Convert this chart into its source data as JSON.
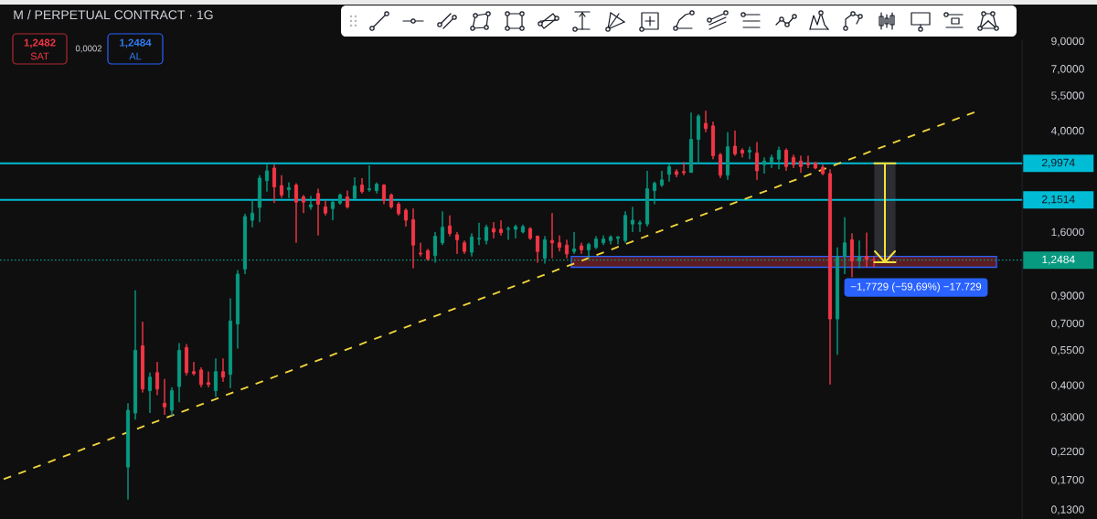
{
  "chart_data": {
    "type": "candlestick",
    "title": "M / PERPETUAL CONTRACT · 1G",
    "categories": [
      null,
      null,
      null,
      null,
      null,
      null,
      null,
      null,
      null,
      null,
      null,
      null,
      null,
      null,
      null,
      null,
      null,
      null,
      null,
      null,
      null,
      null,
      null,
      null,
      null,
      null,
      null,
      null,
      null,
      null,
      null,
      null,
      null,
      null,
      null,
      null,
      null,
      null,
      null,
      null,
      null,
      null,
      null,
      null,
      null,
      null,
      null,
      null,
      null,
      null,
      null,
      null,
      null,
      null,
      null,
      null,
      null,
      null,
      null,
      null,
      null,
      null,
      null,
      null,
      null,
      null,
      null,
      null,
      null,
      null,
      null,
      null,
      null,
      null,
      null,
      null,
      null,
      null,
      null,
      null,
      null,
      null,
      null,
      null,
      null,
      null,
      null,
      null,
      null,
      null,
      null,
      null,
      null,
      null,
      null,
      null,
      null,
      null,
      null,
      null,
      null,
      null,
      null,
      null,
      null,
      null,
      null,
      null,
      null,
      null,
      null,
      null,
      null,
      null,
      null,
      null,
      null,
      null,
      null,
      null,
      null,
      null,
      null,
      null,
      null,
      null,
      null,
      null,
      null,
      null,
      null,
      null,
      null,
      null,
      null,
      null,
      null,
      null,
      null,
      null
    ],
    "ohlc": [
      null,
      null,
      null,
      null,
      null,
      null,
      null,
      null,
      null,
      null,
      null,
      null,
      null,
      null,
      null,
      null,
      null,
      [
        0.192,
        0.342,
        0.143,
        0.321
      ],
      [
        0.313,
        0.95,
        0.295,
        0.552
      ],
      [
        0.575,
        0.715,
        0.377,
        0.389
      ],
      [
        0.383,
        0.451,
        0.313,
        0.433
      ],
      [
        0.451,
        0.497,
        0.368,
        0.389
      ],
      [
        0.342,
        0.426,
        0.308,
        0.331
      ],
      [
        0.321,
        0.395,
        0.305,
        0.383
      ],
      [
        0.398,
        0.589,
        0.345,
        0.552
      ],
      [
        0.566,
        0.584,
        0.44,
        0.451
      ],
      [
        0.455,
        0.497,
        0.44,
        0.447
      ],
      [
        0.462,
        0.473,
        0.395,
        0.405
      ],
      [
        0.412,
        0.455,
        0.395,
        0.405
      ],
      [
        0.383,
        0.513,
        0.362,
        0.455
      ],
      [
        0.455,
        0.513,
        0.415,
        0.433
      ],
      [
        0.444,
        0.883,
        0.392,
        0.72
      ],
      [
        0.7,
        1.14,
        0.561,
        1.1
      ],
      [
        1.15,
        1.9,
        1.1,
        1.85
      ],
      [
        1.79,
        2.16,
        1.68,
        1.91
      ],
      [
        2.01,
        2.69,
        1.76,
        2.62
      ],
      [
        2.56,
        2.96,
        2.32,
        2.8
      ],
      [
        2.87,
        2.96,
        2.09,
        2.42
      ],
      [
        2.45,
        2.69,
        2.19,
        2.25
      ],
      [
        2.36,
        2.52,
        2.19,
        2.4
      ],
      [
        2.46,
        2.5,
        1.46,
        2.11
      ],
      [
        2.21,
        2.25,
        1.91,
        2.11
      ],
      [
        2.02,
        2.23,
        1.97,
        2.06
      ],
      [
        2.28,
        2.38,
        1.56,
        2.07
      ],
      [
        2.02,
        2.14,
        1.87,
        1.91
      ],
      [
        1.99,
        2.14,
        1.79,
        2.11
      ],
      [
        2.09,
        2.28,
        2.06,
        2.25
      ],
      [
        2.21,
        2.34,
        1.99,
        2.02
      ],
      [
        2.18,
        2.64,
        2.16,
        2.44
      ],
      [
        2.46,
        2.62,
        2.28,
        2.32
      ],
      [
        2.36,
        2.94,
        2.32,
        2.38
      ],
      [
        2.34,
        2.52,
        2.28,
        2.48
      ],
      [
        2.46,
        2.48,
        2.07,
        2.14
      ],
      [
        2.25,
        2.28,
        1.99,
        2.02
      ],
      [
        2.07,
        2.11,
        1.87,
        1.9
      ],
      [
        1.96,
        1.99,
        1.69,
        1.79
      ],
      [
        1.8,
        1.99,
        1.16,
        1.43
      ],
      [
        1.33,
        1.46,
        1.29,
        1.32
      ],
      [
        1.36,
        1.38,
        1.24,
        1.26
      ],
      [
        1.3,
        1.61,
        1.22,
        1.55
      ],
      [
        1.46,
        1.94,
        1.43,
        1.68
      ],
      [
        1.7,
        1.87,
        1.55,
        1.59
      ],
      [
        1.57,
        1.61,
        1.32,
        1.5
      ],
      [
        1.46,
        1.49,
        1.32,
        1.35
      ],
      [
        1.34,
        1.59,
        1.29,
        1.54
      ],
      [
        1.51,
        1.75,
        1.43,
        1.52
      ],
      [
        1.49,
        1.72,
        1.44,
        1.68
      ],
      [
        1.66,
        1.76,
        1.52,
        1.61
      ],
      [
        1.65,
        1.79,
        1.56,
        1.6
      ],
      [
        1.65,
        1.69,
        1.5,
        1.66
      ],
      [
        1.65,
        1.72,
        1.52,
        1.69
      ],
      [
        1.61,
        1.72,
        1.59,
        1.69
      ],
      [
        1.66,
        1.68,
        1.5,
        1.52
      ],
      [
        1.55,
        1.56,
        1.22,
        1.35
      ],
      [
        1.27,
        1.55,
        1.21,
        1.5
      ],
      [
        1.49,
        1.91,
        1.27,
        1.46
      ],
      [
        1.46,
        1.56,
        1.35,
        1.4
      ],
      [
        1.43,
        1.5,
        1.27,
        1.32
      ],
      [
        1.35,
        1.61,
        1.32,
        1.38
      ],
      [
        1.42,
        1.46,
        1.32,
        1.37
      ],
      [
        1.37,
        1.46,
        1.27,
        1.44
      ],
      [
        1.4,
        1.55,
        1.38,
        1.51
      ],
      [
        1.46,
        1.56,
        1.43,
        1.51
      ],
      [
        1.49,
        1.56,
        1.44,
        1.54
      ],
      [
        1.52,
        1.55,
        1.44,
        1.54
      ],
      [
        1.49,
        1.94,
        1.46,
        1.87
      ],
      [
        1.73,
        2.02,
        1.61,
        1.79
      ],
      [
        1.73,
        1.79,
        1.61,
        1.75
      ],
      [
        1.73,
        2.8,
        1.69,
        2.38
      ],
      [
        2.34,
        2.54,
        2.07,
        2.5
      ],
      [
        2.46,
        2.8,
        2.42,
        2.58
      ],
      [
        2.71,
        2.99,
        2.54,
        2.91
      ],
      [
        2.78,
        2.84,
        2.64,
        2.71
      ],
      [
        2.78,
        3.03,
        2.69,
        2.75
      ],
      [
        2.76,
        4.74,
        2.75,
        3.72
      ],
      [
        3.72,
        4.67,
        2.99,
        4.59
      ],
      [
        4.3,
        4.82,
        3.97,
        4.1
      ],
      [
        4.2,
        4.37,
        3.11,
        3.21
      ],
      [
        3.24,
        3.29,
        2.62,
        2.69
      ],
      [
        2.69,
        3.97,
        2.58,
        3.48
      ],
      [
        3.5,
        4.03,
        3.21,
        3.26
      ],
      [
        3.37,
        3.43,
        3.16,
        3.29
      ],
      [
        3.32,
        3.48,
        3.11,
        3.37
      ],
      [
        3.29,
        3.63,
        2.58,
        2.8
      ],
      [
        2.96,
        3.16,
        2.73,
        3.06
      ],
      [
        3.03,
        3.24,
        2.87,
        3.16
      ],
      [
        3.11,
        3.48,
        2.84,
        3.37
      ],
      [
        3.37,
        3.43,
        2.8,
        2.91
      ],
      [
        3.16,
        3.24,
        2.87,
        2.96
      ],
      [
        3.06,
        3.21,
        2.75,
        2.91
      ],
      [
        3.01,
        3.21,
        2.87,
        2.96
      ],
      [
        3.01,
        3.03,
        2.84,
        2.87
      ],
      [
        2.89,
        2.96,
        2.69,
        2.73
      ],
      [
        2.73,
        2.84,
        0.405,
        0.733
      ],
      [
        0.733,
        1.4,
        0.53,
        1.29
      ],
      [
        1.29,
        1.84,
        1.1,
        1.46
      ],
      [
        1.5,
        1.59,
        1.07,
        1.24
      ],
      [
        1.24,
        1.49,
        1.16,
        1.29
      ],
      [
        1.29,
        1.6,
        1.17,
        1.26
      ],
      [
        1.25,
        1.29,
        1.17,
        1.2484
      ],
      null,
      null,
      null,
      null,
      null,
      null,
      null,
      null,
      null,
      null,
      null,
      null,
      null,
      null,
      null,
      null,
      null,
      null,
      null,
      null
    ],
    "colors": [
      null,
      null,
      null,
      null,
      null,
      null,
      null,
      null,
      null,
      null,
      null,
      null,
      null,
      null,
      null,
      null,
      null,
      "#089981",
      "#089981",
      "#f23645",
      "#089981",
      "#f23645",
      "#f23645",
      "#089981",
      "#089981",
      "#f23645",
      "#f23645",
      "#f23645",
      "#f23645",
      "#089981",
      "#f23645",
      "#089981",
      "#089981",
      "#089981",
      "#089981",
      "#089981",
      "#089981",
      "#f23645",
      "#f23645",
      "#089981",
      "#f23645",
      "#f23645",
      "#089981",
      "#f23645",
      "#f23645",
      "#089981",
      "#089981",
      "#f23645",
      "#089981",
      "#f23645",
      "#089981",
      "#089981",
      "#f23645",
      "#f23645",
      "#f23645",
      "#f23645",
      "#f23645",
      "#f23645",
      "#f23645",
      "#089981",
      "#089981",
      "#f23645",
      "#f23645",
      "#f23645",
      "#089981",
      "#089981",
      "#089981",
      "#f23645",
      "#f23645",
      "#089981",
      "#089981",
      "#089981",
      "#f23645",
      "#f23645",
      "#089981",
      "#f23645",
      "#f23645",
      "#f23645",
      "#089981",
      "#f23645",
      "#089981",
      "#089981",
      "#089981",
      "#089981",
      "#089981",
      "#089981",
      "#089981",
      "#089981",
      "#089981",
      "#089981",
      "#089981",
      "#089981",
      "#f23645",
      "#f23645",
      "#089981",
      "#089981",
      "#f23645",
      "#f23645",
      "#f23645",
      "#089981",
      "#f23645",
      "#f23645",
      "#089981",
      "#f23645",
      "#089981",
      "#089981",
      "#089981",
      "#f23645",
      "#f23645",
      "#f23645",
      "#f23645",
      "#f23645",
      "#f23645",
      "#f23645",
      "#089981",
      "#089981",
      "#f23645",
      "#089981",
      "#f23645",
      "#f23645",
      null,
      null,
      null,
      null,
      null,
      null,
      null,
      null,
      null,
      null,
      null,
      null,
      null,
      null,
      null,
      null,
      null,
      null,
      null,
      null
    ],
    "series": [
      {
        "type": "line",
        "color": "#f0d43a",
        "line_style": "dashed",
        "values": [
          0.172,
          null,
          null,
          null,
          null,
          null,
          null,
          null,
          null,
          null,
          null,
          null,
          null,
          null,
          null,
          null,
          null,
          null,
          null,
          null,
          null,
          null,
          null,
          null,
          null,
          null,
          null,
          null,
          null,
          null,
          null,
          null,
          null,
          null,
          null,
          null,
          null,
          null,
          null,
          null,
          null,
          null,
          null,
          null,
          null,
          null,
          null,
          null,
          null,
          null,
          null,
          null,
          null,
          null,
          null,
          null,
          null,
          null,
          null,
          null,
          null,
          null,
          null,
          null,
          null,
          null,
          null,
          null,
          null,
          null,
          null,
          null,
          null,
          null,
          null,
          null,
          null,
          null,
          null,
          null,
          null,
          null,
          null,
          null,
          null,
          null,
          null,
          null,
          null,
          null,
          null,
          null,
          null,
          null,
          null,
          null,
          null,
          null,
          null,
          null,
          null,
          null,
          null,
          null,
          null,
          null,
          null,
          null,
          null,
          null,
          null,
          null,
          null,
          null,
          null,
          null,
          null,
          null,
          null,
          null,
          null,
          null,
          null,
          null,
          null,
          null,
          null,
          null,
          null,
          null,
          null,
          null,
          null,
          4.79,
          null,
          null,
          null,
          null,
          null,
          null
        ]
      }
    ],
    "log": true,
    "ylim": [
      0.12,
      9.2
    ],
    "yticks": [
      {
        "value": 0.13,
        "label": "0,1300"
      },
      {
        "value": 0.17,
        "label": "0,1700"
      },
      {
        "value": 0.22,
        "label": "0,2200"
      },
      {
        "value": 0.3,
        "label": "0,3000"
      },
      {
        "value": 0.4,
        "label": "0,4000"
      },
      {
        "value": 0.55,
        "label": "0,5500"
      },
      {
        "value": 0.7,
        "label": "0,7000"
      },
      {
        "value": 0.9,
        "label": "0,9000"
      },
      {
        "value": 1.6,
        "label": "1,6000"
      },
      {
        "value": 4,
        "label": "4,0000"
      },
      {
        "value": 5.5,
        "label": "5,5000"
      },
      {
        "value": 7,
        "label": "7,0000"
      },
      {
        "value": 9,
        "label": "9,0000"
      }
    ],
    "tick_labels": "y",
    "ref_lines": [
      {
        "axis": "y",
        "value": 2.9974,
        "label": "2,9974",
        "color": "#00bcd4"
      },
      {
        "axis": "y",
        "value": 2.1514,
        "label": "2,1514",
        "color": "#00bcd4"
      },
      {
        "axis": "y",
        "value": 1.2484,
        "label": "1,2484",
        "color": "#089981",
        "line_style": "dotted"
      }
    ],
    "bands": [
      {
        "axis": "y",
        "from": 1.17,
        "to": 1.29,
        "color": "#5c1c22"
      }
    ],
    "annotations": [
      "1,2482",
      "SAT",
      "0,0002",
      "1,2484",
      "AL",
      {
        "text": "−1,7729 (−59,69%) −17.729",
        "y": 1.2245
      }
    ]
  }
}
